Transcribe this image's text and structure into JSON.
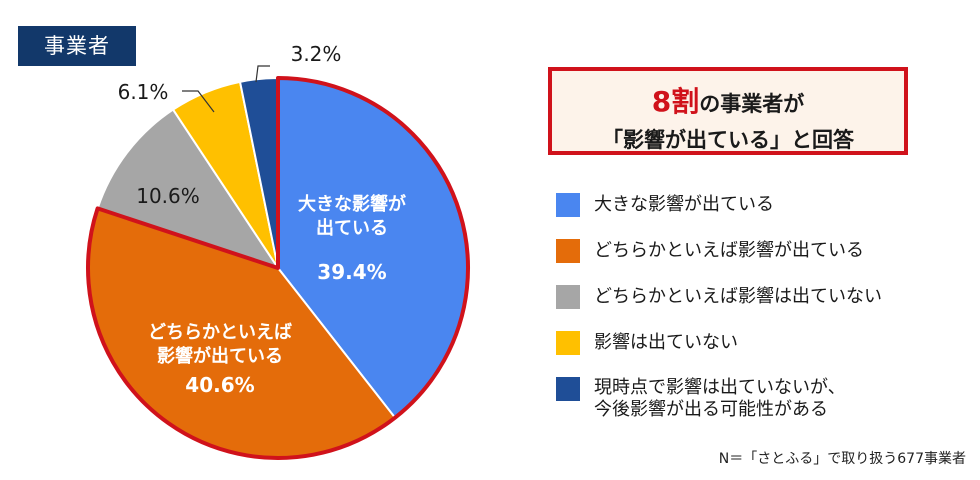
{
  "tag": "事業者",
  "callout": {
    "highlight": "8割",
    "line1_rest": "の事業者が",
    "line2": "「影響が出ている」と回答"
  },
  "footnote": "N＝「さとふる」で取り扱う677事業者",
  "chart_data": {
    "type": "pie",
    "start": "12 o'clock, clockwise",
    "slices": [
      {
        "label": "大きな影響が出ている",
        "inner_label": [
          "大きな影響が",
          "出ている"
        ],
        "value": 39.4,
        "value_label": "39.4%",
        "color": "#4a86f0"
      },
      {
        "label": "どちらかといえば影響が出ている",
        "inner_label": [
          "どちらかといえば",
          "影響が出ている"
        ],
        "value": 40.6,
        "value_label": "40.6%",
        "color": "#e46c0a"
      },
      {
        "label": "どちらかといえば影響は出ていない",
        "inner_label": [],
        "value": 10.6,
        "value_label": "10.6%",
        "color": "#a6a6a6"
      },
      {
        "label": "影響は出ていない",
        "inner_label": [],
        "value": 6.1,
        "value_label": "6.1%",
        "color": "#ffc000"
      },
      {
        "label": "現時点で影響は出ていないが、今後影響が出る可能性がある",
        "inner_label": [],
        "value": 3.2,
        "value_label": "3.2%",
        "color": "#1f4e97"
      }
    ],
    "highlighted_slices": [
      0,
      1
    ],
    "highlight_color": "#d0121b"
  },
  "legend": [
    {
      "text": "大きな影響が出ている",
      "color": "#4a86f0"
    },
    {
      "text": "どちらかといえば影響が出ている",
      "color": "#e46c0a"
    },
    {
      "text": "どちらかといえば影響は出ていない",
      "color": "#a6a6a6"
    },
    {
      "text": "影響は出ていない",
      "color": "#ffc000"
    },
    {
      "text": [
        "現時点で影響は出ていないが、",
        "今後影響が出る可能性がある"
      ],
      "color": "#1f4e97"
    }
  ]
}
